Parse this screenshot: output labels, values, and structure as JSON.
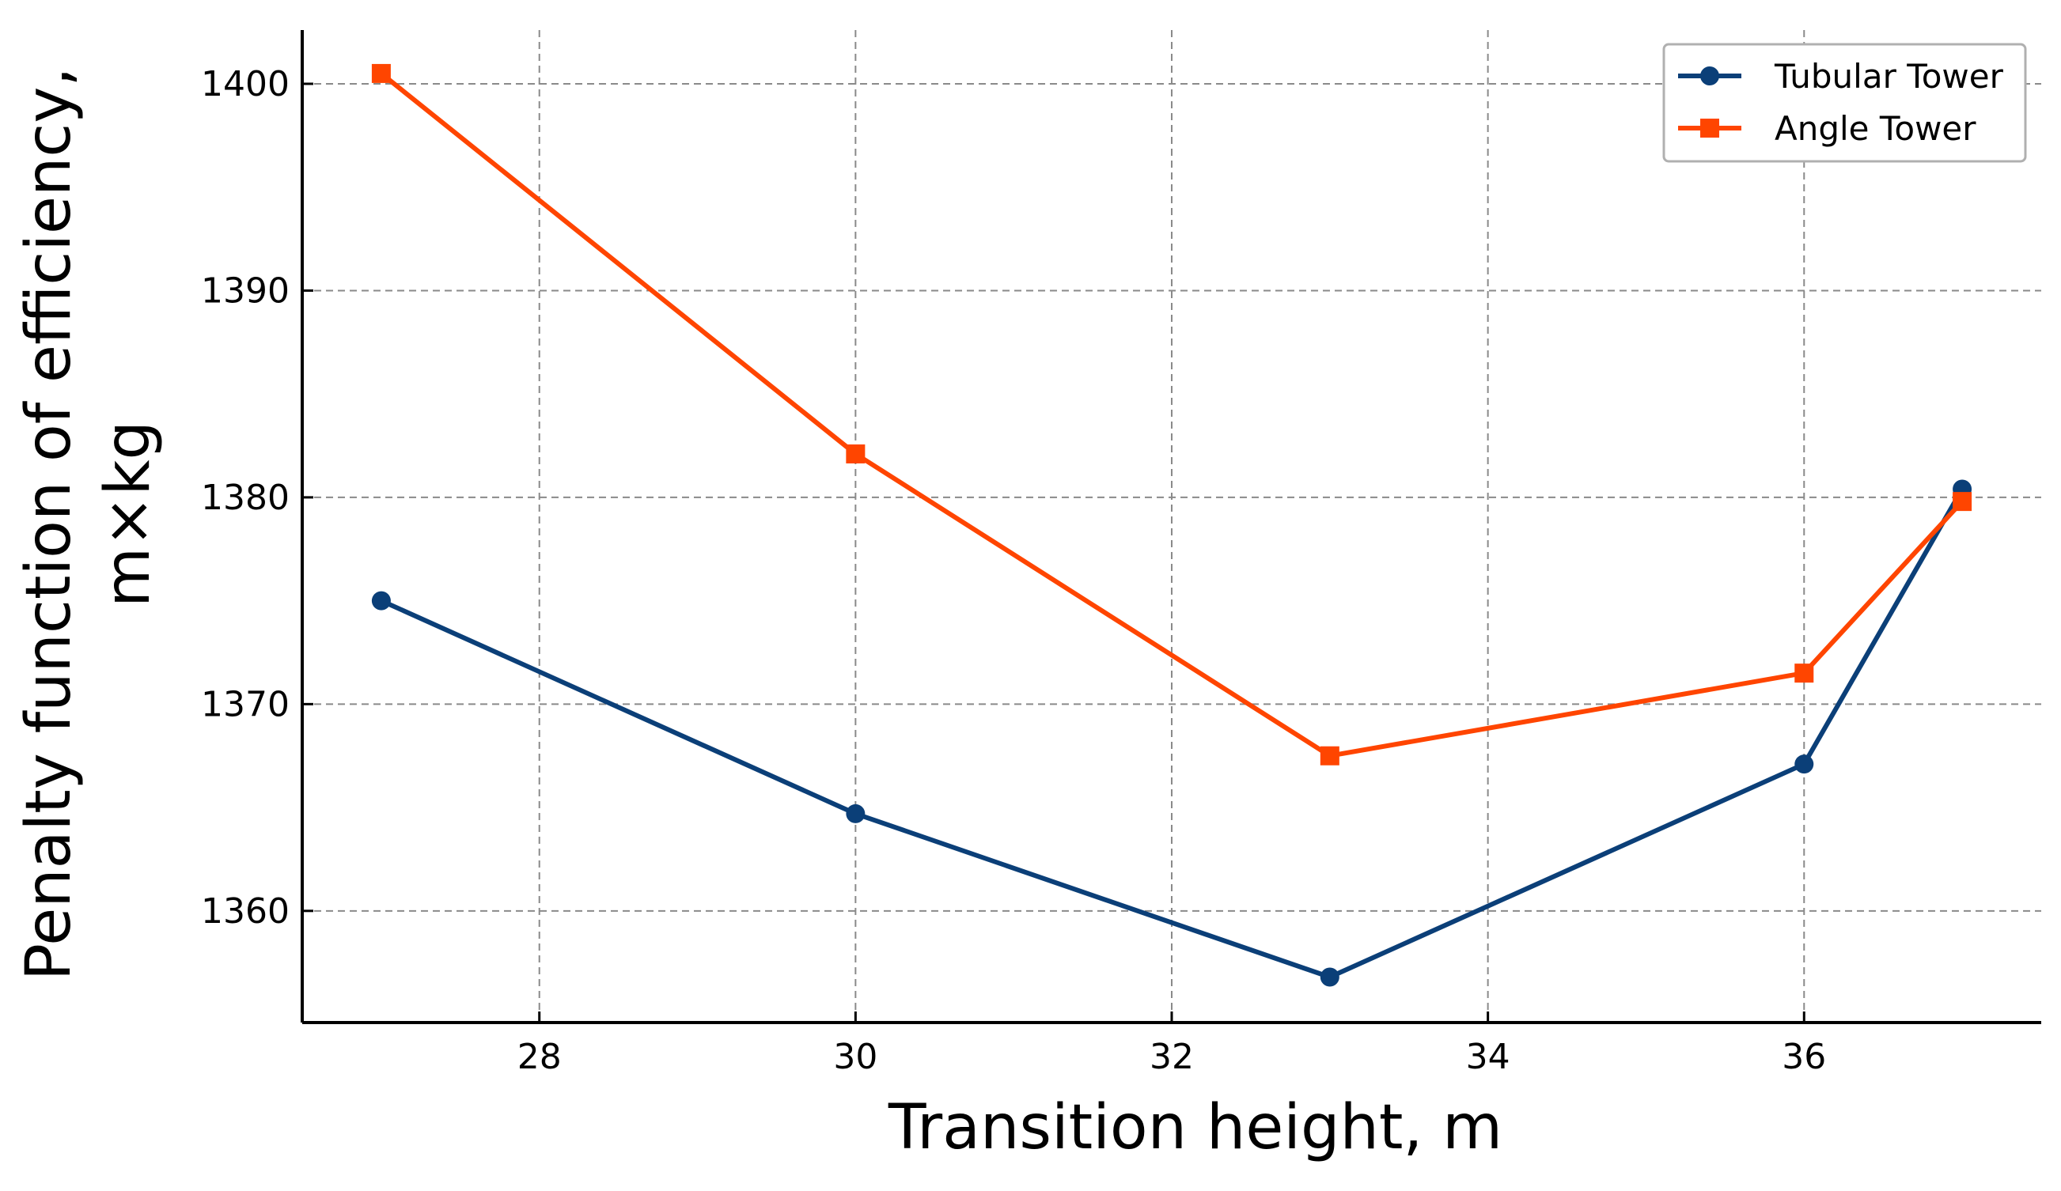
{
  "chart_data": {
    "type": "line",
    "title": "",
    "xlabel": "Transition height, m",
    "ylabel_lines": [
      "Penalty function of efficiency,",
      "m×kg"
    ],
    "xlim": [
      26.5,
      37.5
    ],
    "ylim": [
      1354.6,
      1402.6
    ],
    "x_ticks": [
      28,
      30,
      32,
      34,
      36
    ],
    "y_ticks": [
      1360,
      1370,
      1380,
      1390,
      1400
    ],
    "grid": true,
    "legend_position": "top-right",
    "x": [
      27,
      30,
      33,
      36,
      37
    ],
    "series": [
      {
        "name": "Tubular Tower",
        "marker": "circle",
        "color": "#0b3f78",
        "values": [
          1375.0,
          1364.7,
          1356.8,
          1367.1,
          1380.4
        ]
      },
      {
        "name": "Angle Tower",
        "marker": "square",
        "color": "#ff4500",
        "values": [
          1400.5,
          1382.1,
          1367.5,
          1371.5,
          1379.8
        ]
      }
    ]
  }
}
